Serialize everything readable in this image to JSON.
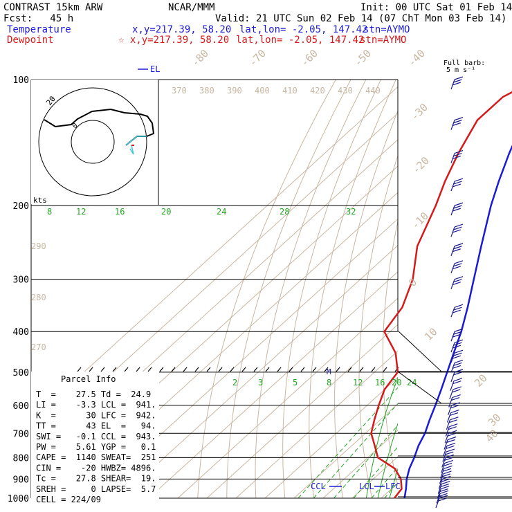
{
  "header": {
    "title": "CONTRAST 15km ARW",
    "center": "NCAR/MMM",
    "init": "Init: 00 UTC Sat 01 Feb 14",
    "fcst": "Fcst:   45 h",
    "valid": "Valid: 21 UTC Sun 02 Feb 14 (07 ChT Mon 03 Feb 14)",
    "temp_label": "Temperature",
    "temp_xy": "x,y=217.39, 58.20",
    "temp_latlon": "lat,lon= -2.05, 147.42",
    "temp_stn": "stn=AYMO",
    "dew_label": "Dewpoint",
    "dew_xy": "☆ x,y=217.39, 58.20",
    "dew_latlon": "lat,lon= -2.05, 147.42",
    "dew_stn": "stn=AYMO"
  },
  "colors": {
    "temperature": "#1a1ad6",
    "dewpoint": "#d41a1a",
    "isotherm": "#c8b6a0",
    "mixing_ratio": "#22a622",
    "wind": "#1a1a8c"
  },
  "barb_title": "Full barb:",
  "barb_units": "5 m s⁻¹",
  "hodograph": {
    "ring_label": "20",
    "inner_label": "0",
    "units": "kts"
  },
  "parcel_info": {
    "title": "Parcel Info",
    "lines": [
      "T  =    27.5 Td =  24.9",
      "LI =    -3.3 LCL =  941.",
      "K  =      30 LFC =  942.",
      "TT =      43 EL  =   94.",
      "SWI =   -0.1 CCL =  943.",
      "PW =    5.61 YGP =   0.1",
      "CAPE =  1140 SWEAT=  251",
      "CIN =    -20 HWBZ= 4896.",
      "Tc =    27.8 SHEAR=  19.",
      "SREH =     0 LAPSE=  5.7",
      "CELL = 224/09"
    ]
  },
  "markers": {
    "el": "EL",
    "ccl": "CCL",
    "lcl": "LCL",
    "lfc": "LFC",
    "m": "M"
  },
  "chart_data": {
    "type": "skew-t",
    "y_label_pressure_levels": [
      "100",
      "200",
      "300",
      "400",
      "500",
      "600",
      "700",
      "800",
      "900",
      "1000"
    ],
    "pressure_levels": [
      100,
      200,
      300,
      400,
      500,
      600,
      700,
      800,
      900,
      1000
    ],
    "isotherm_labels": [
      "-80",
      "-70",
      "-60",
      "-50",
      "-40",
      "-30",
      "-20",
      "-10",
      "0",
      "10",
      "20",
      "30",
      "40"
    ],
    "theta_labels_top": [
      "370",
      "380",
      "390",
      "400",
      "410",
      "420",
      "430",
      "440"
    ],
    "theta_labels_left": [
      "290",
      "280",
      "270"
    ],
    "mixing_ratio_labels_upper": [
      "8",
      "12",
      "16",
      "20",
      "24",
      "28",
      "32"
    ],
    "mixing_ratio_labels_lower": [
      "2",
      "3",
      "5",
      "8",
      "12",
      "16",
      "20",
      "24"
    ],
    "temperature": [
      [
        1000,
        28.0
      ],
      [
        950,
        25.0
      ],
      [
        900,
        21.5
      ],
      [
        850,
        18.5
      ],
      [
        800,
        16.0
      ],
      [
        750,
        13.0
      ],
      [
        700,
        10.5
      ],
      [
        650,
        7.0
      ],
      [
        600,
        3.5
      ],
      [
        550,
        -0.5
      ],
      [
        500,
        -5.0
      ],
      [
        450,
        -10.0
      ],
      [
        400,
        -15.5
      ],
      [
        350,
        -22.5
      ],
      [
        300,
        -31.0
      ],
      [
        250,
        -41.0
      ],
      [
        200,
        -53.0
      ],
      [
        175,
        -59.5
      ],
      [
        150,
        -66.5
      ],
      [
        125,
        -74.0
      ],
      [
        100,
        -80.0
      ]
    ],
    "dewpoint": [
      [
        1000,
        24.5
      ],
      [
        950,
        23.5
      ],
      [
        900,
        19.5
      ],
      [
        850,
        13.5
      ],
      [
        800,
        3.5
      ],
      [
        750,
        -2.0
      ],
      [
        700,
        -8.0
      ],
      [
        650,
        -12.0
      ],
      [
        600,
        -16.0
      ],
      [
        550,
        -20.0
      ],
      [
        500,
        -22.0
      ],
      [
        450,
        -30.0
      ],
      [
        400,
        -42.0
      ],
      [
        350,
        -45.0
      ],
      [
        300,
        -52.0
      ],
      [
        250,
        -63.0
      ],
      [
        200,
        -72.0
      ],
      [
        175,
        -78.0
      ],
      [
        150,
        -84.0
      ],
      [
        125,
        -90.0
      ],
      [
        110,
        -90.0
      ],
      [
        100,
        -85.0
      ]
    ],
    "wind_levels": [
      1000,
      975,
      950,
      925,
      900,
      875,
      850,
      825,
      800,
      775,
      750,
      725,
      700,
      675,
      650,
      625,
      600,
      575,
      550,
      525,
      500,
      475,
      450,
      425,
      400,
      350,
      300,
      275,
      250,
      225,
      200,
      175,
      150,
      125,
      100
    ]
  }
}
